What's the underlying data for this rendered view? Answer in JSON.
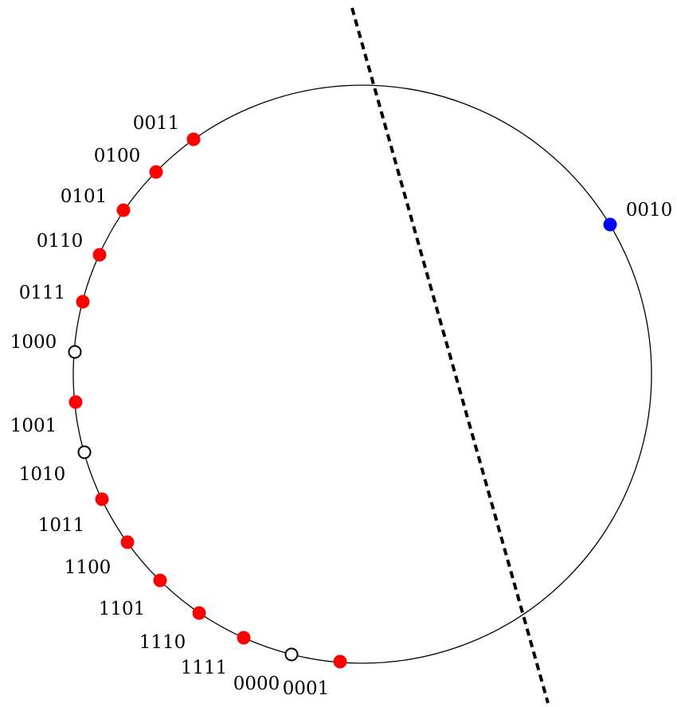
{
  "points": [
    {
      "label": "0011",
      "state": "filled",
      "color": "#ff0000"
    },
    {
      "label": "0100",
      "state": "filled",
      "color": "#ff0000"
    },
    {
      "label": "0101",
      "state": "filled",
      "color": "#ff0000"
    },
    {
      "label": "0110",
      "state": "filled",
      "color": "#ff0000"
    },
    {
      "label": "0111",
      "state": "filled",
      "color": "#ff0000"
    },
    {
      "label": "1000",
      "state": "hollow",
      "color": "#ffffff"
    },
    {
      "label": "1001",
      "state": "filled",
      "color": "#ff0000"
    },
    {
      "label": "1010",
      "state": "hollow",
      "color": "#ffffff"
    },
    {
      "label": "1011",
      "state": "filled",
      "color": "#ff0000"
    },
    {
      "label": "1100",
      "state": "filled",
      "color": "#ff0000"
    },
    {
      "label": "1101",
      "state": "filled",
      "color": "#ff0000"
    },
    {
      "label": "1110",
      "state": "filled",
      "color": "#ff0000"
    },
    {
      "label": "1111",
      "state": "filled",
      "color": "#ff0000"
    },
    {
      "label": "0000",
      "state": "hollow",
      "color": "#ffffff"
    },
    {
      "label": "0001",
      "state": "filled",
      "color": "#ff0000"
    },
    {
      "label": "0010",
      "state": "filled",
      "color": "#0000ff"
    }
  ],
  "line_style": "dashed"
}
